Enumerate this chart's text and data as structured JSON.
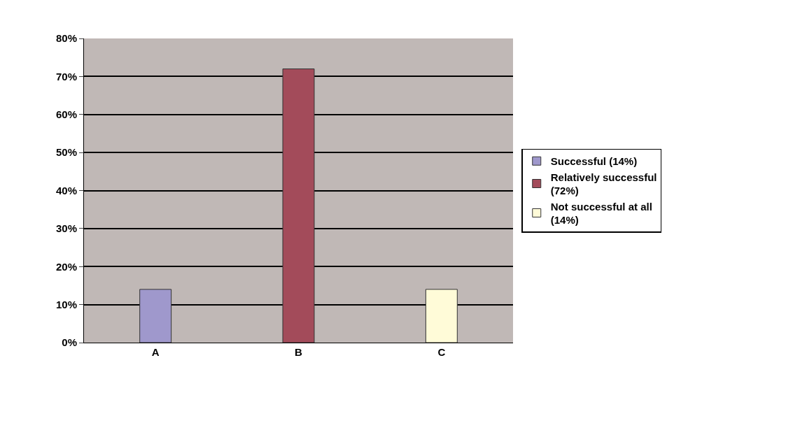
{
  "chart_data": {
    "type": "bar",
    "categories": [
      "A",
      "B",
      "C"
    ],
    "series": [
      {
        "name": "Successful (14%)",
        "color": "#9f98cc",
        "values": [
          14,
          null,
          null
        ]
      },
      {
        "name": "Relatively successful (72%)",
        "color": "#a34b5a",
        "values": [
          null,
          72,
          null
        ]
      },
      {
        "name": "Not successful at all (14%)",
        "color": "#fffbd8",
        "values": [
          null,
          null,
          14
        ]
      }
    ],
    "ylim": [
      0,
      80
    ],
    "yticks": [
      {
        "value": 0,
        "label": "0%"
      },
      {
        "value": 10,
        "label": "10%"
      },
      {
        "value": 20,
        "label": "20%"
      },
      {
        "value": 30,
        "label": "30%"
      },
      {
        "value": 40,
        "label": "40%"
      },
      {
        "value": 50,
        "label": "50%"
      },
      {
        "value": 60,
        "label": "60%"
      },
      {
        "value": 70,
        "label": "70%"
      },
      {
        "value": 80,
        "label": "80%"
      }
    ],
    "grid": "y",
    "legend": "right"
  }
}
